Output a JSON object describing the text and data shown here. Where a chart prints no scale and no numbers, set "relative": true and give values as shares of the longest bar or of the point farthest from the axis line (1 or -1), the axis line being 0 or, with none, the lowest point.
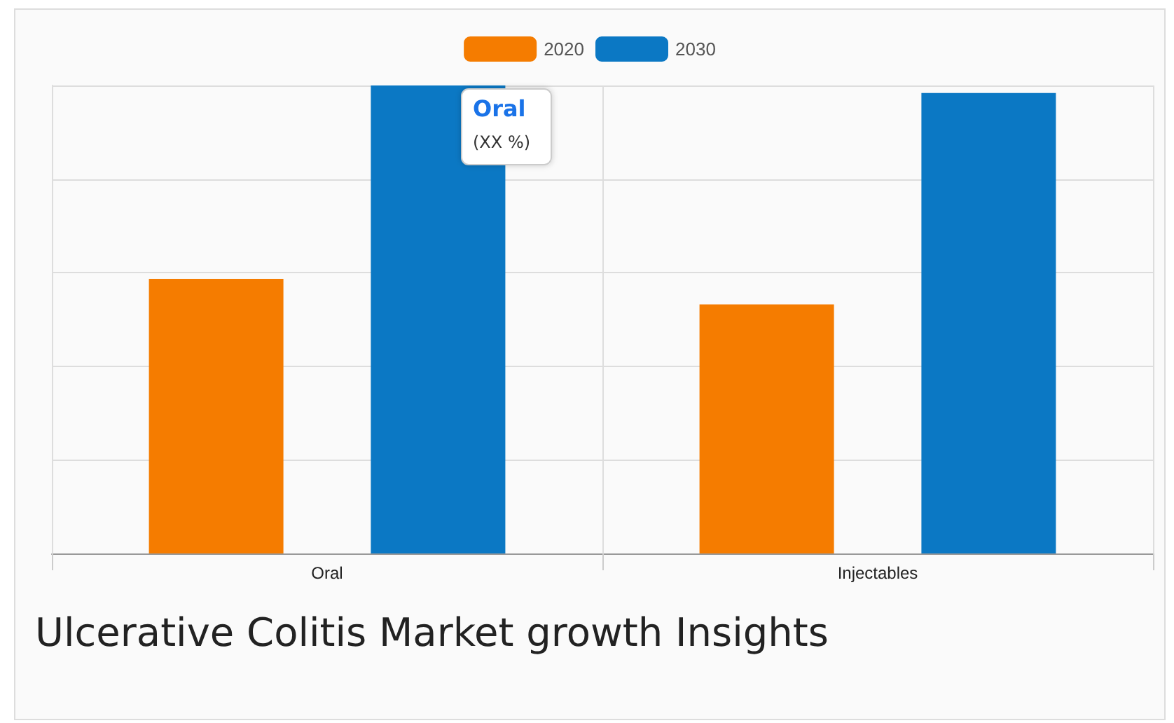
{
  "chart_data": {
    "type": "bar",
    "title": "Ulcerative Colitis Market growth Insights",
    "categories": [
      "Oral",
      "Injectables"
    ],
    "relative": true,
    "series": [
      {
        "name": "2020",
        "color": "#f57c00",
        "values": [
          0.587,
          0.532
        ]
      },
      {
        "name": "2030",
        "color": "#0b78c4",
        "values": [
          1,
          0.984
        ]
      }
    ],
    "annotations": [
      "Oral",
      "(XX %)"
    ],
    "grid": true,
    "legend": "top"
  }
}
